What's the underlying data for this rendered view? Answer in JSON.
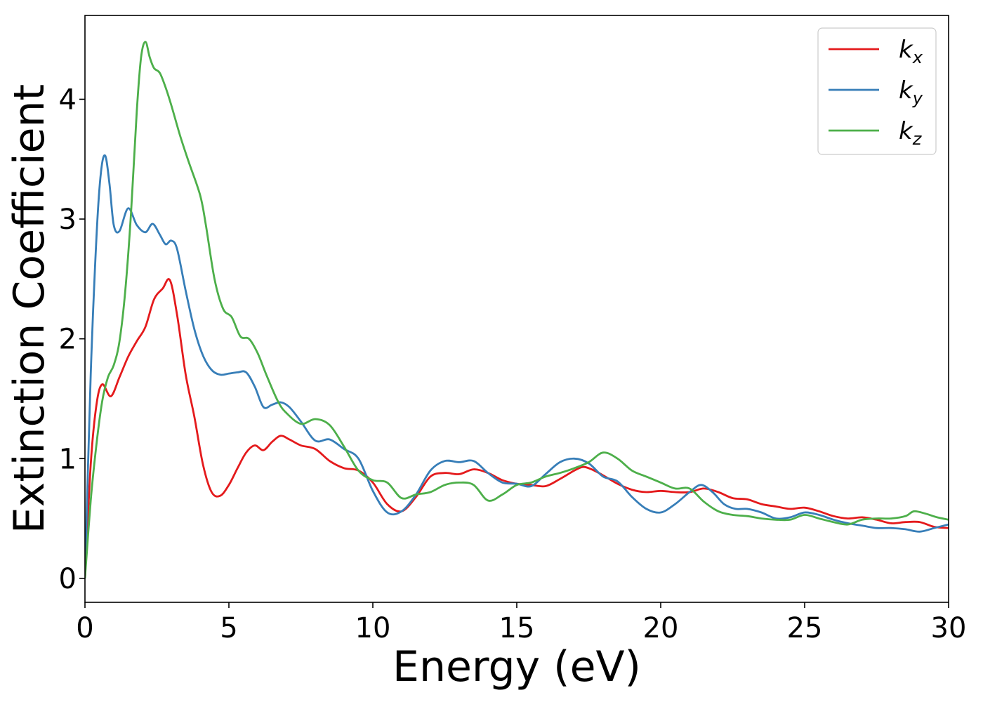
{
  "chart_data": {
    "type": "line",
    "title": "",
    "xlabel": "Energy (eV)",
    "ylabel": "Extinction Coefficient",
    "xlim": [
      0,
      30
    ],
    "ylim": [
      -0.2,
      4.7
    ],
    "xticks": [
      0,
      5,
      10,
      15,
      20,
      25,
      30
    ],
    "yticks": [
      0,
      1,
      2,
      3,
      4
    ],
    "grid": false,
    "legend_position": "top-right",
    "series": [
      {
        "name": "k",
        "subscript": "x",
        "color": "#e41a1c",
        "x": [
          0,
          0.2,
          0.4,
          0.6,
          0.9,
          1.2,
          1.5,
          1.8,
          2.1,
          2.4,
          2.7,
          2.95,
          3.2,
          3.5,
          3.8,
          4.1,
          4.4,
          4.7,
          5.0,
          5.3,
          5.6,
          5.9,
          6.2,
          6.5,
          6.8,
          7.1,
          7.5,
          8.0,
          8.5,
          9.0,
          9.5,
          10.0,
          10.5,
          11.0,
          11.5,
          12.0,
          12.5,
          13.0,
          13.5,
          14.0,
          14.5,
          15.0,
          15.5,
          16.0,
          16.5,
          17.0,
          17.3,
          17.6,
          18.0,
          18.5,
          19.0,
          19.5,
          20.0,
          20.5,
          21.0,
          21.5,
          22.0,
          22.5,
          23.0,
          23.5,
          24.0,
          24.5,
          25.0,
          25.5,
          26.0,
          26.5,
          27.0,
          27.5,
          28.0,
          28.5,
          29.0,
          29.5,
          30.0
        ],
        "y": [
          0.0,
          0.95,
          1.45,
          1.62,
          1.52,
          1.68,
          1.85,
          1.98,
          2.1,
          2.33,
          2.42,
          2.49,
          2.2,
          1.7,
          1.35,
          0.95,
          0.72,
          0.69,
          0.78,
          0.92,
          1.05,
          1.11,
          1.07,
          1.14,
          1.19,
          1.16,
          1.11,
          1.08,
          0.98,
          0.92,
          0.9,
          0.8,
          0.62,
          0.56,
          0.68,
          0.85,
          0.88,
          0.87,
          0.91,
          0.88,
          0.82,
          0.79,
          0.78,
          0.77,
          0.83,
          0.9,
          0.93,
          0.91,
          0.86,
          0.79,
          0.74,
          0.72,
          0.73,
          0.72,
          0.72,
          0.75,
          0.72,
          0.67,
          0.66,
          0.62,
          0.6,
          0.58,
          0.59,
          0.56,
          0.52,
          0.5,
          0.51,
          0.49,
          0.46,
          0.47,
          0.47,
          0.43,
          0.42
        ]
      },
      {
        "name": "k",
        "subscript": "y",
        "color": "#377eb8",
        "x": [
          0,
          0.2,
          0.4,
          0.55,
          0.7,
          0.85,
          1.0,
          1.2,
          1.5,
          1.8,
          2.1,
          2.35,
          2.6,
          2.8,
          3.0,
          3.2,
          3.5,
          3.8,
          4.1,
          4.4,
          4.7,
          5.0,
          5.3,
          5.6,
          5.9,
          6.2,
          6.5,
          6.8,
          7.1,
          7.5,
          8.0,
          8.5,
          9.0,
          9.5,
          10.0,
          10.5,
          11.0,
          11.5,
          12.0,
          12.5,
          13.0,
          13.5,
          14.0,
          14.5,
          15.0,
          15.5,
          16.0,
          16.5,
          17.0,
          17.5,
          18.0,
          18.5,
          19.0,
          19.5,
          20.0,
          20.5,
          21.0,
          21.4,
          21.8,
          22.2,
          22.6,
          23.0,
          23.5,
          24.0,
          24.5,
          25.0,
          25.5,
          26.0,
          26.5,
          27.0,
          27.5,
          28.0,
          28.5,
          29.0,
          29.5,
          30.0
        ],
        "y": [
          0.0,
          1.7,
          2.85,
          3.38,
          3.53,
          3.3,
          2.95,
          2.9,
          3.09,
          2.95,
          2.89,
          2.96,
          2.87,
          2.79,
          2.82,
          2.75,
          2.4,
          2.08,
          1.86,
          1.74,
          1.7,
          1.71,
          1.72,
          1.72,
          1.6,
          1.43,
          1.45,
          1.47,
          1.43,
          1.31,
          1.15,
          1.16,
          1.08,
          1.0,
          0.73,
          0.55,
          0.56,
          0.7,
          0.9,
          0.98,
          0.97,
          0.98,
          0.88,
          0.8,
          0.79,
          0.77,
          0.87,
          0.97,
          1.0,
          0.96,
          0.85,
          0.81,
          0.68,
          0.58,
          0.55,
          0.62,
          0.72,
          0.78,
          0.72,
          0.62,
          0.58,
          0.58,
          0.55,
          0.5,
          0.51,
          0.55,
          0.53,
          0.49,
          0.46,
          0.44,
          0.42,
          0.42,
          0.41,
          0.39,
          0.42,
          0.45
        ]
      },
      {
        "name": "k",
        "subscript": "z",
        "color": "#4daf4a",
        "x": [
          0,
          0.2,
          0.4,
          0.6,
          0.8,
          1.0,
          1.2,
          1.4,
          1.6,
          1.8,
          1.95,
          2.1,
          2.25,
          2.4,
          2.6,
          2.8,
          3.0,
          3.3,
          3.6,
          4.0,
          4.2,
          4.5,
          4.8,
          5.1,
          5.4,
          5.7,
          6.0,
          6.3,
          6.7,
          7.0,
          7.5,
          8.0,
          8.5,
          9.0,
          9.5,
          10.0,
          10.5,
          11.0,
          11.5,
          12.0,
          12.5,
          13.0,
          13.5,
          14.0,
          14.5,
          15.0,
          15.5,
          16.0,
          16.5,
          17.0,
          17.5,
          18.0,
          18.5,
          19.0,
          19.5,
          20.0,
          20.5,
          21.0,
          21.5,
          22.0,
          22.5,
          23.0,
          23.5,
          24.0,
          24.5,
          25.0,
          25.5,
          26.0,
          26.5,
          27.0,
          27.5,
          28.0,
          28.5,
          28.8,
          29.2,
          29.6,
          30.0
        ],
        "y": [
          0.0,
          0.65,
          1.12,
          1.48,
          1.68,
          1.78,
          1.98,
          2.4,
          3.05,
          3.9,
          4.35,
          4.48,
          4.35,
          4.26,
          4.22,
          4.1,
          3.95,
          3.7,
          3.48,
          3.2,
          2.95,
          2.5,
          2.25,
          2.18,
          2.02,
          2.0,
          1.88,
          1.7,
          1.48,
          1.38,
          1.29,
          1.33,
          1.28,
          1.1,
          0.9,
          0.82,
          0.8,
          0.67,
          0.7,
          0.72,
          0.78,
          0.8,
          0.78,
          0.65,
          0.7,
          0.78,
          0.8,
          0.85,
          0.88,
          0.92,
          0.97,
          1.05,
          1.0,
          0.9,
          0.85,
          0.8,
          0.75,
          0.75,
          0.64,
          0.56,
          0.53,
          0.52,
          0.5,
          0.49,
          0.49,
          0.53,
          0.5,
          0.47,
          0.45,
          0.49,
          0.5,
          0.5,
          0.52,
          0.56,
          0.54,
          0.51,
          0.49
        ]
      }
    ]
  }
}
